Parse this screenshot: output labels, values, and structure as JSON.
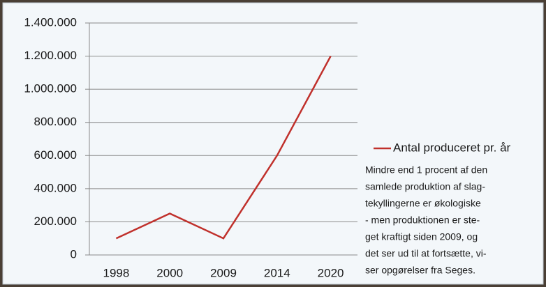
{
  "chart_data": {
    "type": "line",
    "categories": [
      "1998",
      "2000",
      "2009",
      "2014",
      "2020"
    ],
    "series": [
      {
        "name": "Antal produceret pr. år",
        "color": "#c0302b",
        "values": [
          100000,
          250000,
          100000,
          600000,
          1200000
        ]
      }
    ],
    "ylim": [
      0,
      1400000
    ],
    "yticks": [
      0,
      {
        "value": 200000,
        "label": "200.000"
      },
      {
        "value": 400000,
        "label": "400.000"
      },
      {
        "value": 600000,
        "label": "600.000"
      },
      {
        "value": 800000,
        "label": "800.000"
      },
      {
        "value": 1000000,
        "label": "1.000.000"
      },
      {
        "value": 1200000,
        "label": "1.200.000"
      },
      {
        "value": 1400000,
        "label": "1.400.000"
      }
    ],
    "grid": true,
    "legend": "right",
    "annotation": [
      "Mindre end 1 procent af den",
      "samlede produktion af slag-",
      "tekyllingerne er økologiske",
      "- men produktionen er ste-",
      "get kraftigt siden 2009, og",
      "det ser ud til at fortsætte, vi-",
      "ser opgørelser fra Seges."
    ]
  }
}
